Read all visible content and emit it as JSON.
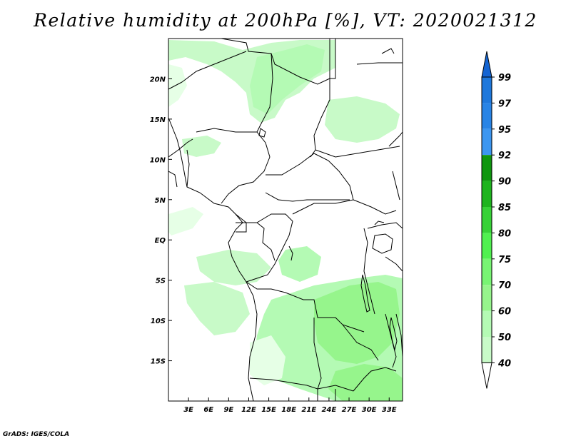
{
  "title": "Relative humidity at 200hPa [%], VT: 2020021312",
  "credit": "GrADS: IGES/COLA",
  "map": {
    "lon_range": [
      0,
      35
    ],
    "lat_range": [
      -20,
      25
    ],
    "lon_ticks": [
      "3E",
      "6E",
      "9E",
      "12E",
      "15E",
      "18E",
      "21E",
      "24E",
      "27E",
      "30E",
      "33E"
    ],
    "lat_ticks": [
      "20N",
      "15N",
      "10N",
      "5N",
      "EQ",
      "5S",
      "10S",
      "15S"
    ]
  },
  "colorbar": {
    "levels": [
      "99",
      "97",
      "95",
      "92",
      "90",
      "85",
      "80",
      "75",
      "70",
      "60",
      "50",
      "40"
    ],
    "colors": [
      "#1e78dc",
      "#2884e6",
      "#3c96f0",
      "#0f960f",
      "#1eb41e",
      "#37d237",
      "#50f050",
      "#78f573",
      "#96f58c",
      "#b4fab4",
      "#c8fac8",
      "#e6ffe6"
    ],
    "top_arrow_color": "#1464d2",
    "bottom_arrow_color": "#ffffff"
  }
}
